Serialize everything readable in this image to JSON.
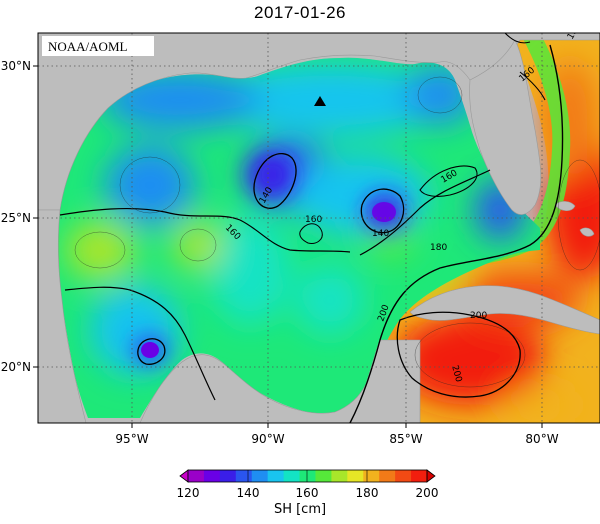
{
  "title": "2017-01-26",
  "credit": "NOAA/AOML",
  "lon_labels": [
    "95°W",
    "90°W",
    "85°W",
    "80°W"
  ],
  "lat_labels": [
    "30°N",
    "25°N",
    "20°N"
  ],
  "contour_labels": [
    "180",
    "160",
    "160",
    "140",
    "160",
    "140",
    "160",
    "180",
    "200",
    "200",
    "200"
  ],
  "colorbar": {
    "ticks": [
      "120",
      "140",
      "160",
      "180",
      "200"
    ],
    "unit": "SH [cm]",
    "colors": [
      "#9a00c8",
      "#6a00e6",
      "#3a1ee8",
      "#2a55ef",
      "#1f8ef2",
      "#19c4ef",
      "#13e3c4",
      "#1ee878",
      "#56e83a",
      "#a8e62a",
      "#e6e626",
      "#f2b21e",
      "#f27a18",
      "#f24a14",
      "#f21e0e"
    ]
  },
  "marker": "triangle-marker"
}
